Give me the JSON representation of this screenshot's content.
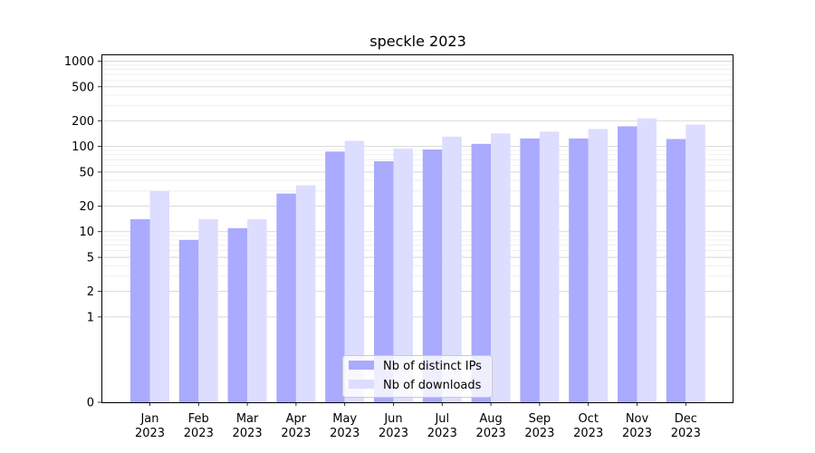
{
  "chart_data": {
    "type": "bar",
    "title": "speckle 2023",
    "xlabel": "",
    "ylabel": "",
    "yscale": "symlog",
    "ylim": [
      0,
      1200
    ],
    "yticks": [
      0,
      1,
      2,
      5,
      10,
      20,
      50,
      100,
      200,
      500,
      1000
    ],
    "ytick_labels": [
      "0",
      "1",
      "2",
      "5",
      "10",
      "20",
      "50",
      "100",
      "200",
      "500",
      "1000"
    ],
    "grid": "horizontal",
    "legend_position": "bottom-center",
    "categories": [
      [
        "Jan",
        "2023"
      ],
      [
        "Feb",
        "2023"
      ],
      [
        "Mar",
        "2023"
      ],
      [
        "Apr",
        "2023"
      ],
      [
        "May",
        "2023"
      ],
      [
        "Jun",
        "2023"
      ],
      [
        "Jul",
        "2023"
      ],
      [
        "Aug",
        "2023"
      ],
      [
        "Sep",
        "2023"
      ],
      [
        "Oct",
        "2023"
      ],
      [
        "Nov",
        "2023"
      ],
      [
        "Dec",
        "2023"
      ]
    ],
    "series": [
      {
        "name": "Nb of distinct IPs",
        "color": "#aaaaff",
        "values": [
          14,
          8,
          11,
          28,
          87,
          67,
          92,
          107,
          124,
          124,
          172,
          122
        ]
      },
      {
        "name": "Nb of downloads",
        "color": "#ddddff",
        "values": [
          30,
          14,
          14,
          35,
          116,
          94,
          130,
          142,
          149,
          160,
          213,
          180
        ]
      }
    ]
  }
}
